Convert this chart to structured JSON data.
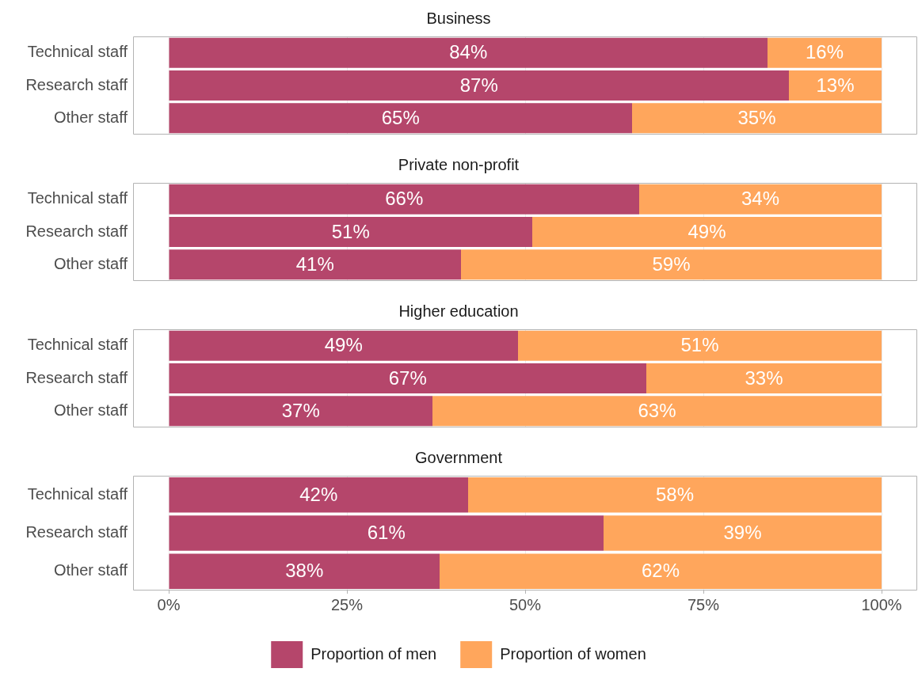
{
  "chart_data": [
    {
      "type": "bar",
      "orientation": "horizontal",
      "stacked": true,
      "title": "Business",
      "categories": [
        "Technical staff",
        "Research staff",
        "Other staff"
      ],
      "xlim": [
        -5,
        105
      ],
      "xticks": [
        {
          "value": 0,
          "label": null
        },
        {
          "value": 25,
          "label": null
        },
        {
          "value": 50,
          "label": null
        },
        {
          "value": 75,
          "label": null
        },
        {
          "value": 100,
          "label": null
        }
      ],
      "tick_labels": "y",
      "grid": "x",
      "legend": false,
      "series": [
        {
          "color": "#b5466b",
          "values": [
            84,
            87,
            65
          ],
          "value_labels": [
            "84%",
            "87%",
            "65%"
          ]
        },
        {
          "color": "#ffa65c",
          "values": [
            16,
            13,
            35
          ],
          "value_labels": [
            "16%",
            "13%",
            "35%"
          ]
        }
      ]
    },
    {
      "type": "bar",
      "orientation": "horizontal",
      "stacked": true,
      "title": "Private non-profit",
      "categories": [
        "Technical staff",
        "Research staff",
        "Other staff"
      ],
      "xlim": [
        -5,
        105
      ],
      "xticks": [
        {
          "value": 0,
          "label": null
        },
        {
          "value": 25,
          "label": null
        },
        {
          "value": 50,
          "label": null
        },
        {
          "value": 75,
          "label": null
        },
        {
          "value": 100,
          "label": null
        }
      ],
      "tick_labels": "y",
      "grid": "x",
      "legend": false,
      "series": [
        {
          "color": "#b5466b",
          "values": [
            66,
            51,
            41
          ],
          "value_labels": [
            "66%",
            "51%",
            "41%"
          ]
        },
        {
          "color": "#ffa65c",
          "values": [
            34,
            49,
            59
          ],
          "value_labels": [
            "34%",
            "49%",
            "59%"
          ]
        }
      ]
    },
    {
      "type": "bar",
      "orientation": "horizontal",
      "stacked": true,
      "title": "Higher education",
      "categories": [
        "Technical staff",
        "Research staff",
        "Other staff"
      ],
      "xlim": [
        -5,
        105
      ],
      "xticks": [
        {
          "value": 0,
          "label": null
        },
        {
          "value": 25,
          "label": null
        },
        {
          "value": 50,
          "label": null
        },
        {
          "value": 75,
          "label": null
        },
        {
          "value": 100,
          "label": null
        }
      ],
      "tick_labels": "y",
      "grid": "x",
      "legend": false,
      "series": [
        {
          "color": "#b5466b",
          "values": [
            49,
            67,
            37
          ],
          "value_labels": [
            "49%",
            "67%",
            "37%"
          ]
        },
        {
          "color": "#ffa65c",
          "values": [
            51,
            33,
            63
          ],
          "value_labels": [
            "51%",
            "33%",
            "63%"
          ]
        }
      ]
    },
    {
      "type": "bar",
      "orientation": "horizontal",
      "stacked": true,
      "title": "Government",
      "categories": [
        "Technical staff",
        "Research staff",
        "Other staff"
      ],
      "xlim": [
        -5,
        105
      ],
      "xticks": [
        {
          "value": 0,
          "label": "0%"
        },
        {
          "value": 25,
          "label": "25%"
        },
        {
          "value": 50,
          "label": "50%"
        },
        {
          "value": 75,
          "label": "75%"
        },
        {
          "value": 100,
          "label": "100%"
        }
      ],
      "grid": "x",
      "legend": "bottom",
      "series": [
        {
          "name": "Proportion of men",
          "color": "#b5466b",
          "values": [
            42,
            61,
            38
          ],
          "value_labels": [
            "42%",
            "61%",
            "38%"
          ]
        },
        {
          "name": "Proportion of women",
          "color": "#ffa65c",
          "values": [
            58,
            39,
            62
          ],
          "value_labels": [
            "58%",
            "39%",
            "62%"
          ]
        }
      ]
    }
  ]
}
